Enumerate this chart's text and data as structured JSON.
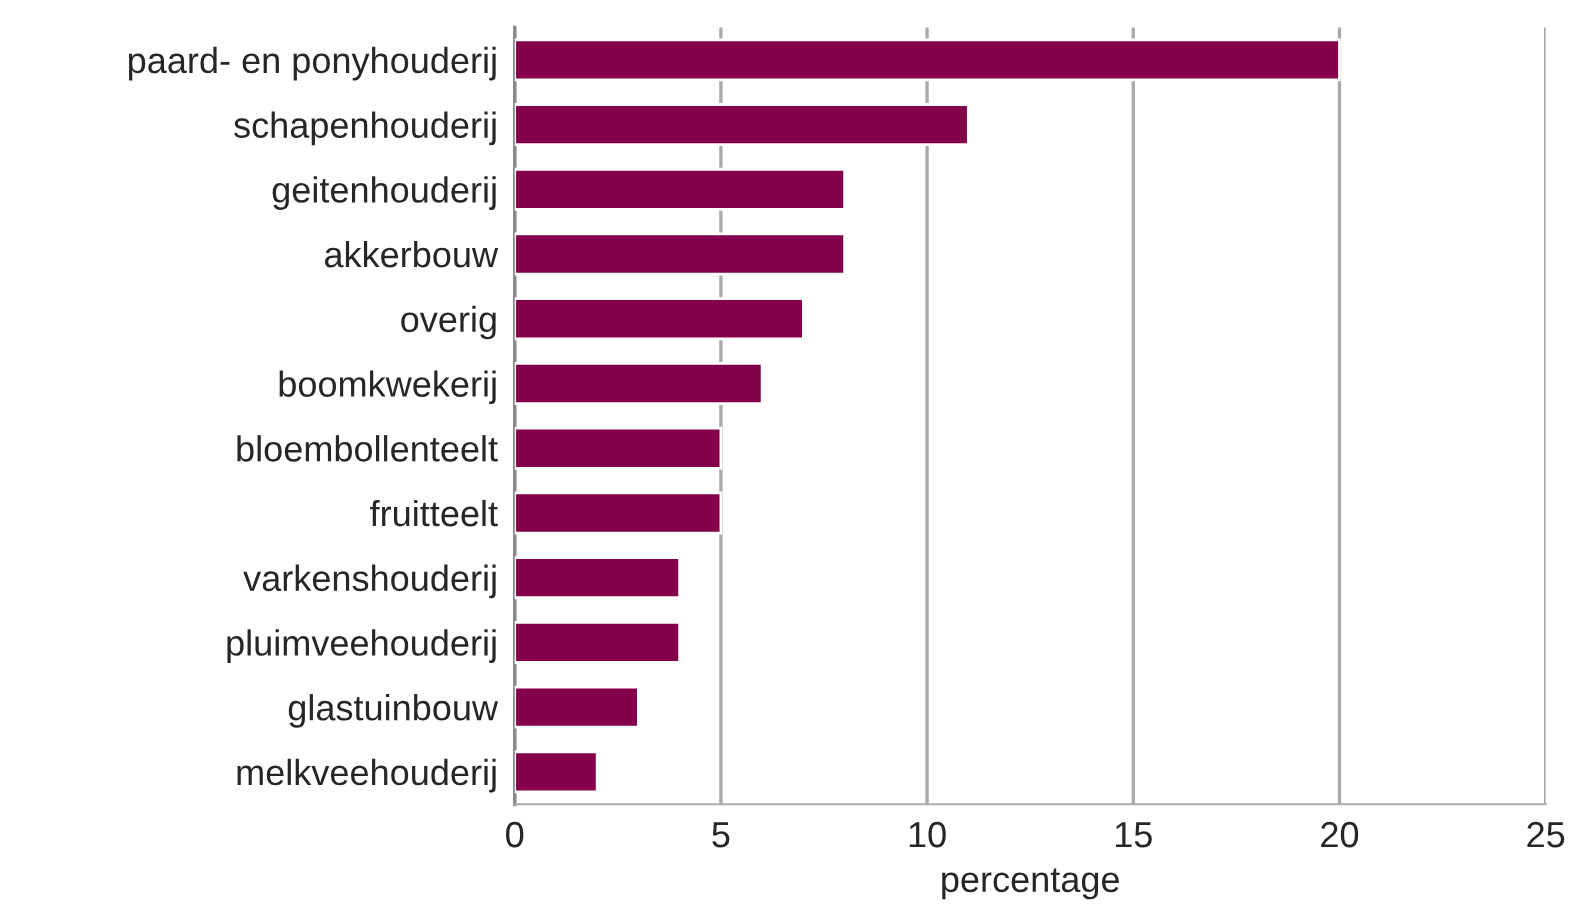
{
  "chart_data": {
    "type": "bar",
    "orientation": "horizontal",
    "xlabel": "percentage",
    "categories": [
      "paard- en ponyhouderij",
      "schapenhouderij",
      "geitenhouderij",
      "akkerbouw",
      "overig",
      "boomkwekerij",
      "bloembollenteelt",
      "fruitteelt",
      "varkenshouderij",
      "pluimveehouderij",
      "glastuinbouw",
      "melkveehouderij"
    ],
    "values": [
      20,
      11,
      8,
      8,
      7,
      6,
      5,
      5,
      4,
      4,
      3,
      2
    ],
    "color": "#84004a",
    "xlim": [
      0,
      25
    ],
    "xticks": [
      0,
      5,
      10,
      15,
      20,
      25
    ],
    "grid": "x"
  }
}
